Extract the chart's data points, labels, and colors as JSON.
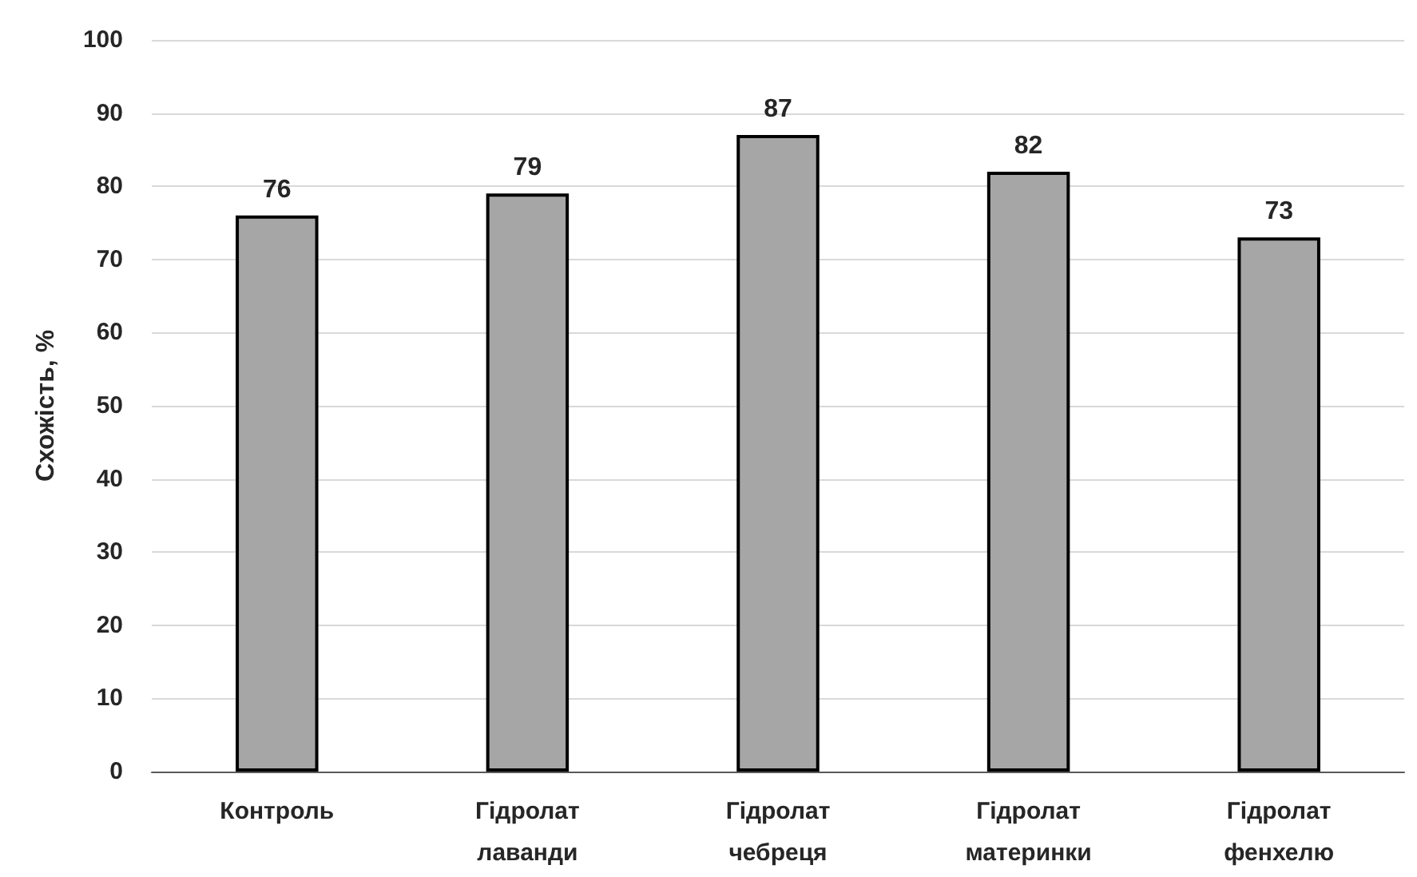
{
  "chart_data": {
    "type": "bar",
    "ylabel": "Схожість, %",
    "categories": [
      "Контроль",
      "Гідролат\nлаванди",
      "Гідролат\nчебреця",
      "Гідролат\nматеринки",
      "Гідролат\nфенхелю"
    ],
    "values": [
      76,
      79,
      87,
      82,
      73
    ],
    "color": "#a6a6a6",
    "ylim": [
      0,
      100
    ],
    "yticks": [
      0,
      10,
      20,
      30,
      40,
      50,
      60,
      70,
      80,
      90,
      100
    ],
    "grid": "y",
    "data_labels": true
  }
}
